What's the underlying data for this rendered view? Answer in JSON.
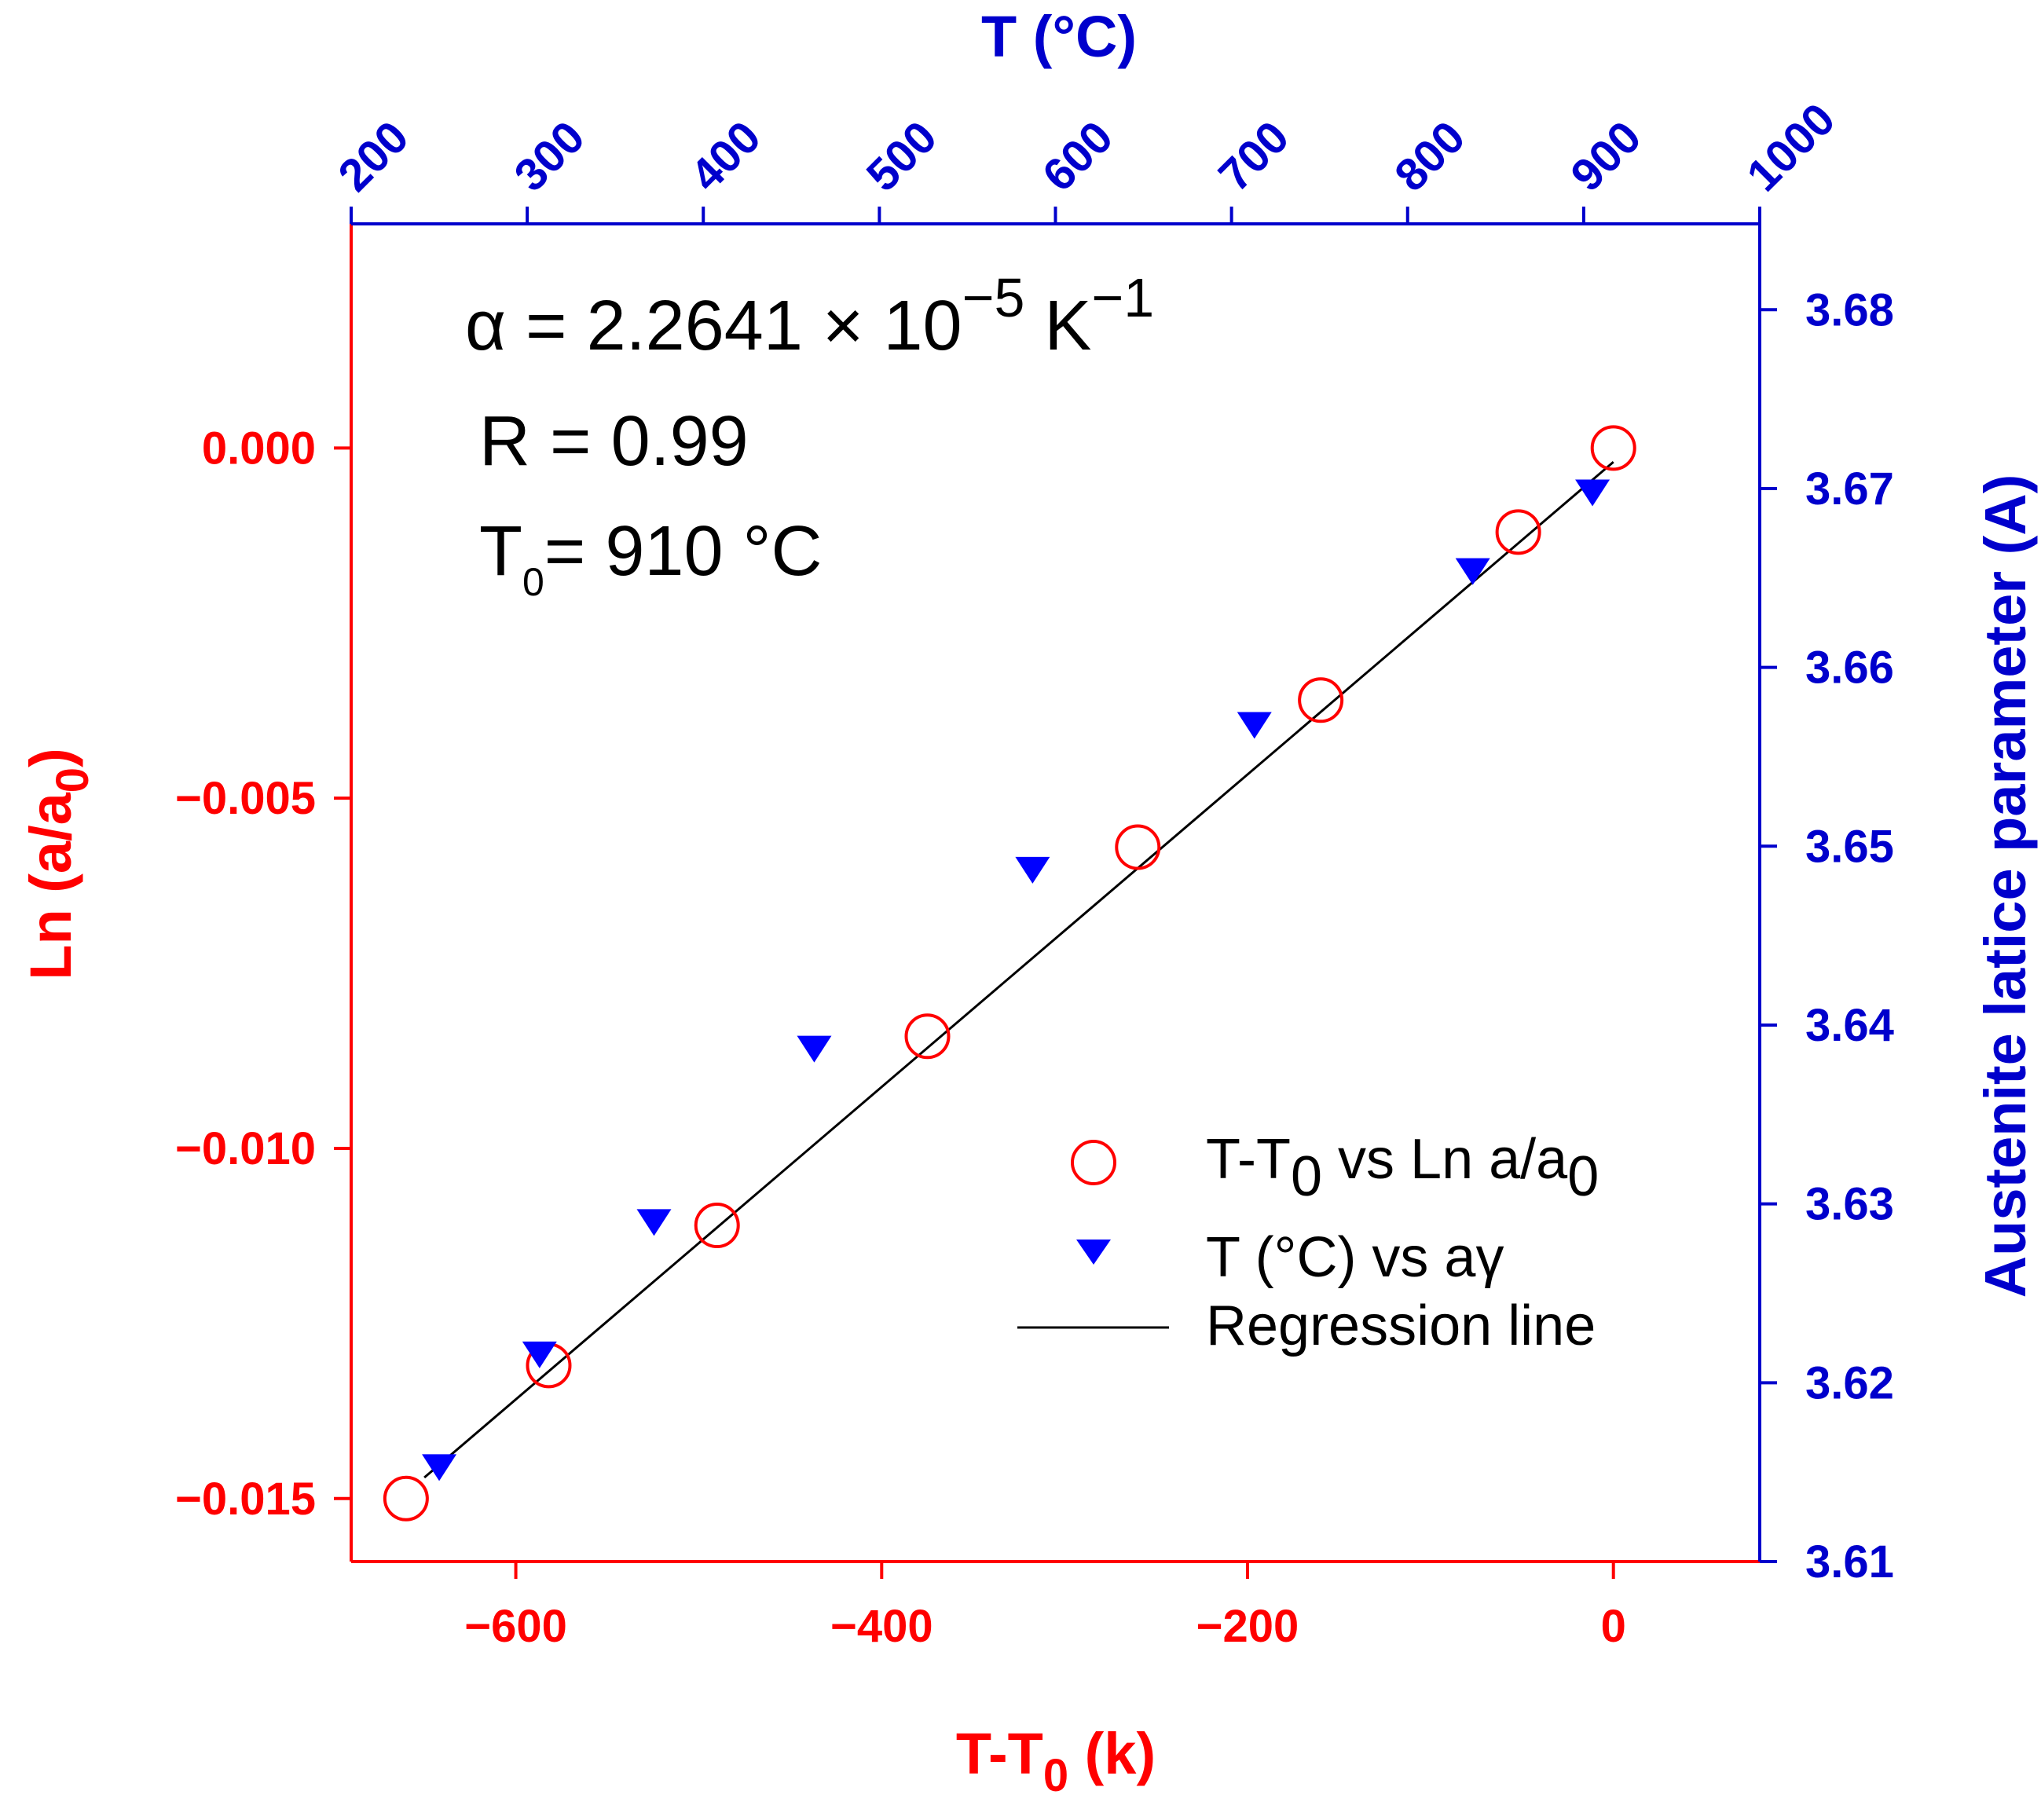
{
  "chart_data": {
    "type": "scatter",
    "annotations": {
      "alpha": {
        "prefix": "α = 2.2641 × 10",
        "exp1": "−5",
        "unit": " K",
        "exp2": "−1"
      },
      "r_value": "R = 0.99",
      "t0": {
        "main": "T",
        "sub": "0",
        "rest": "= 910 °C"
      }
    },
    "x_bottom": {
      "label_main": "T-T",
      "label_sub": "0",
      "label_rest": " (k)",
      "range": [
        -690,
        80
      ],
      "ticks": [
        -600,
        -400,
        -200,
        0
      ],
      "tick_labels": [
        "−600",
        "−400",
        "−200",
        "0"
      ],
      "color": "#ff0000"
    },
    "x_top": {
      "label": "T (°C)",
      "range": [
        200,
        1000
      ],
      "ticks": [
        200,
        300,
        400,
        500,
        600,
        700,
        800,
        900,
        1000
      ],
      "tick_labels": [
        "200",
        "300",
        "400",
        "500",
        "600",
        "700",
        "800",
        "900",
        "1000"
      ],
      "color": "#0000cc"
    },
    "y_left": {
      "label_main": "Ln (a/a",
      "label_sub": "0",
      "label_rest": ")",
      "range": [
        -0.0159,
        0.0032
      ],
      "ticks": [
        0.0,
        -0.005,
        -0.01,
        -0.015
      ],
      "tick_labels": [
        "0.000",
        "−0.005",
        "−0.010",
        "−0.015"
      ],
      "color": "#ff0000"
    },
    "y_right": {
      "label": "Austenite latice parameter (A)",
      "range": [
        3.61,
        3.6848
      ],
      "ticks": [
        3.61,
        3.62,
        3.63,
        3.64,
        3.65,
        3.66,
        3.67,
        3.68
      ],
      "tick_labels": [
        "3.61",
        "3.62",
        "3.63",
        "3.64",
        "3.65",
        "3.66",
        "3.67",
        "3.68"
      ],
      "color": "#0000cc"
    },
    "series": [
      {
        "name": "T-T0 vs Ln a/a0",
        "marker": "open-circle",
        "color": "#ff0000",
        "x": [
          -660,
          -582,
          -490,
          -375,
          -260,
          -160,
          -52,
          0
        ],
        "y": [
          -0.015,
          -0.0131,
          -0.0111,
          -0.0084,
          -0.0057,
          -0.0036,
          -0.0012,
          0.0
        ]
      },
      {
        "name": "T (°C) vs aγ",
        "marker": "filled-triangle-down",
        "color": "#0000ff",
        "x": [
          250,
          307,
          372,
          463,
          587,
          713,
          837,
          905
        ],
        "y": [
          3.6153,
          3.6216,
          3.629,
          3.6387,
          3.6487,
          3.6568,
          3.6654,
          3.6698
        ]
      },
      {
        "name": "Regression line",
        "marker": "line",
        "color": "#000000",
        "x": [
          -650,
          0
        ],
        "y": [
          -0.0147,
          -0.0002
        ]
      }
    ],
    "legend": {
      "position": "center-right",
      "items": [
        {
          "main": "T-T",
          "sub": "0",
          "rest": " vs Ln a/a",
          "sub2": "0"
        },
        {
          "main": "T (°C) vs aγ"
        },
        {
          "main": "Regression line"
        }
      ]
    }
  }
}
